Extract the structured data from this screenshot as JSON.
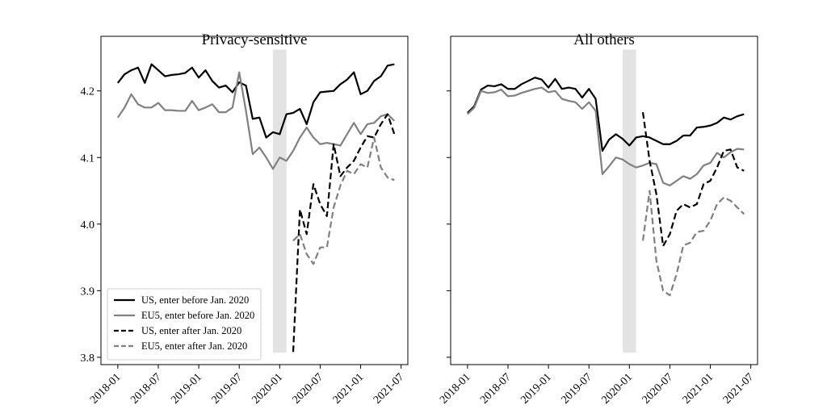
{
  "chart_data": [
    {
      "type": "line",
      "title": "Privacy-sensitive",
      "x": [
        "2018-01",
        "2018-02",
        "2018-03",
        "2018-04",
        "2018-05",
        "2018-06",
        "2018-07",
        "2018-08",
        "2018-09",
        "2018-10",
        "2018-11",
        "2018-12",
        "2019-01",
        "2019-02",
        "2019-03",
        "2019-04",
        "2019-05",
        "2019-06",
        "2019-07",
        "2019-08",
        "2019-09",
        "2019-10",
        "2019-11",
        "2019-12",
        "2020-01",
        "2020-02",
        "2020-03",
        "2020-04",
        "2020-05",
        "2020-06",
        "2020-07",
        "2020-08",
        "2020-09",
        "2020-10",
        "2020-11",
        "2020-12",
        "2021-01",
        "2021-02",
        "2021-03",
        "2021-04",
        "2021-05",
        "2021-06"
      ],
      "series": [
        {
          "name": "US, enter before Jan. 2020",
          "color": "#000000",
          "linestyle": "solid",
          "values": [
            4.212,
            4.225,
            4.231,
            4.235,
            4.212,
            4.24,
            4.231,
            4.222,
            4.224,
            4.225,
            4.227,
            4.235,
            4.22,
            4.231,
            4.215,
            4.205,
            4.208,
            4.198,
            4.213,
            4.208,
            4.158,
            4.16,
            4.13,
            4.138,
            4.135,
            4.165,
            4.167,
            4.173,
            4.15,
            4.183,
            4.198,
            4.199,
            4.2,
            4.21,
            4.217,
            4.228,
            4.195,
            4.2,
            4.215,
            4.222,
            4.238,
            4.24
          ]
        },
        {
          "name": "EU5, enter before Jan. 2020",
          "color": "#808080",
          "linestyle": "solid",
          "values": [
            4.16,
            4.175,
            4.195,
            4.18,
            4.175,
            4.175,
            4.182,
            4.171,
            4.171,
            4.17,
            4.17,
            4.185,
            4.171,
            4.175,
            4.18,
            4.168,
            4.168,
            4.175,
            4.228,
            4.17,
            4.105,
            4.115,
            4.1,
            4.083,
            4.1,
            4.095,
            4.11,
            4.13,
            4.145,
            4.13,
            4.12,
            4.122,
            4.12,
            4.118,
            4.135,
            4.152,
            4.135,
            4.15,
            4.152,
            4.162,
            4.165,
            4.155
          ]
        },
        {
          "name": "US, enter after Jan. 2020",
          "color": "#000000",
          "linestyle": "dashed",
          "values": [
            null,
            null,
            null,
            null,
            null,
            null,
            null,
            null,
            null,
            null,
            null,
            null,
            null,
            null,
            null,
            null,
            null,
            null,
            null,
            null,
            null,
            null,
            null,
            null,
            null,
            null,
            3.808,
            4.022,
            3.985,
            4.06,
            4.03,
            4.012,
            4.12,
            4.072,
            4.085,
            4.095,
            4.115,
            4.132,
            4.13,
            4.15,
            4.165,
            4.135
          ]
        },
        {
          "name": "EU5, enter after Jan. 2020",
          "color": "#808080",
          "linestyle": "dashed",
          "values": [
            null,
            null,
            null,
            null,
            null,
            null,
            null,
            null,
            null,
            null,
            null,
            null,
            null,
            null,
            null,
            null,
            null,
            null,
            null,
            null,
            null,
            null,
            null,
            null,
            null,
            null,
            3.975,
            3.985,
            3.955,
            3.94,
            3.965,
            3.965,
            4.025,
            4.058,
            4.08,
            4.075,
            4.09,
            4.085,
            4.13,
            4.085,
            4.07,
            4.066
          ]
        }
      ],
      "xlim": [
        "2017-10-16",
        "2021-08"
      ],
      "xticks": [
        "2018-01",
        "2018-07",
        "2019-01",
        "2019-07",
        "2020-01",
        "2020-07",
        "2021-01",
        "2021-07"
      ],
      "ylim": [
        3.789,
        4.282
      ],
      "yticks": [
        3.8,
        3.9,
        {
          "value": 4,
          "label": "4.0"
        },
        4.1,
        4.2
      ],
      "show_ytick_labels": true,
      "shade": {
        "x": [
          "2019-12",
          "2020-02"
        ],
        "y": [
          3.807,
          4.262
        ],
        "color": "#e3e3e3"
      },
      "legend": "lower left"
    },
    {
      "type": "line",
      "title": "All others",
      "x": [
        "2018-01",
        "2018-02",
        "2018-03",
        "2018-04",
        "2018-05",
        "2018-06",
        "2018-07",
        "2018-08",
        "2018-09",
        "2018-10",
        "2018-11",
        "2018-12",
        "2019-01",
        "2019-02",
        "2019-03",
        "2019-04",
        "2019-05",
        "2019-06",
        "2019-07",
        "2019-08",
        "2019-09",
        "2019-10",
        "2019-11",
        "2019-12",
        "2020-01",
        "2020-02",
        "2020-03",
        "2020-04",
        "2020-05",
        "2020-06",
        "2020-07",
        "2020-08",
        "2020-09",
        "2020-10",
        "2020-11",
        "2020-12",
        "2021-01",
        "2021-02",
        "2021-03",
        "2021-04",
        "2021-05",
        "2021-06"
      ],
      "series": [
        {
          "color": "#000000",
          "linestyle": "solid",
          "values": [
            4.167,
            4.177,
            4.202,
            4.208,
            4.207,
            4.21,
            4.203,
            4.203,
            4.21,
            4.215,
            4.22,
            4.217,
            4.205,
            4.218,
            4.203,
            4.205,
            4.203,
            4.19,
            4.203,
            4.188,
            4.11,
            4.127,
            4.135,
            4.128,
            4.118,
            4.13,
            4.132,
            4.13,
            4.125,
            4.12,
            4.12,
            4.125,
            4.133,
            4.133,
            4.145,
            4.146,
            4.148,
            4.152,
            4.16,
            4.157,
            4.162,
            4.165
          ]
        },
        {
          "color": "#808080",
          "linestyle": "solid",
          "values": [
            4.165,
            4.175,
            4.2,
            4.197,
            4.198,
            4.202,
            4.192,
            4.193,
            4.197,
            4.2,
            4.203,
            4.205,
            4.198,
            4.2,
            4.188,
            4.185,
            4.183,
            4.173,
            4.183,
            4.17,
            4.075,
            4.087,
            4.1,
            4.097,
            4.09,
            4.085,
            4.088,
            4.092,
            4.09,
            4.062,
            4.058,
            4.065,
            4.072,
            4.068,
            4.075,
            4.088,
            4.092,
            4.107,
            4.1,
            4.108,
            4.113,
            4.112
          ]
        },
        {
          "color": "#000000",
          "linestyle": "dashed",
          "values": [
            null,
            null,
            null,
            null,
            null,
            null,
            null,
            null,
            null,
            null,
            null,
            null,
            null,
            null,
            null,
            null,
            null,
            null,
            null,
            null,
            null,
            null,
            null,
            null,
            null,
            null,
            4.168,
            4.095,
            4.045,
            3.967,
            3.985,
            4.02,
            4.03,
            4.025,
            4.03,
            4.06,
            4.065,
            4.085,
            4.11,
            4.112,
            4.085,
            4.08
          ]
        },
        {
          "color": "#808080",
          "linestyle": "dashed",
          "values": [
            null,
            null,
            null,
            null,
            null,
            null,
            null,
            null,
            null,
            null,
            null,
            null,
            null,
            null,
            null,
            null,
            null,
            null,
            null,
            null,
            null,
            null,
            null,
            null,
            null,
            null,
            3.975,
            4.05,
            3.945,
            3.9,
            3.893,
            3.925,
            3.968,
            3.972,
            3.988,
            3.99,
            4.005,
            4.03,
            4.04,
            4.035,
            4.025,
            4.015
          ]
        }
      ],
      "xlim": [
        "2017-10-16",
        "2021-08"
      ],
      "xticks": [
        "2018-01",
        "2018-07",
        "2019-01",
        "2019-07",
        "2020-01",
        "2020-07",
        "2021-01",
        "2021-07"
      ],
      "ylim": [
        3.789,
        4.282
      ],
      "yticks": [
        3.8,
        3.9,
        {
          "value": 4,
          "label": "4.0"
        },
        4.1,
        4.2
      ],
      "show_ytick_labels": false,
      "shade": {
        "x": [
          "2019-12",
          "2020-02"
        ],
        "y": [
          3.807,
          4.262
        ],
        "color": "#e3e3e3"
      }
    }
  ]
}
